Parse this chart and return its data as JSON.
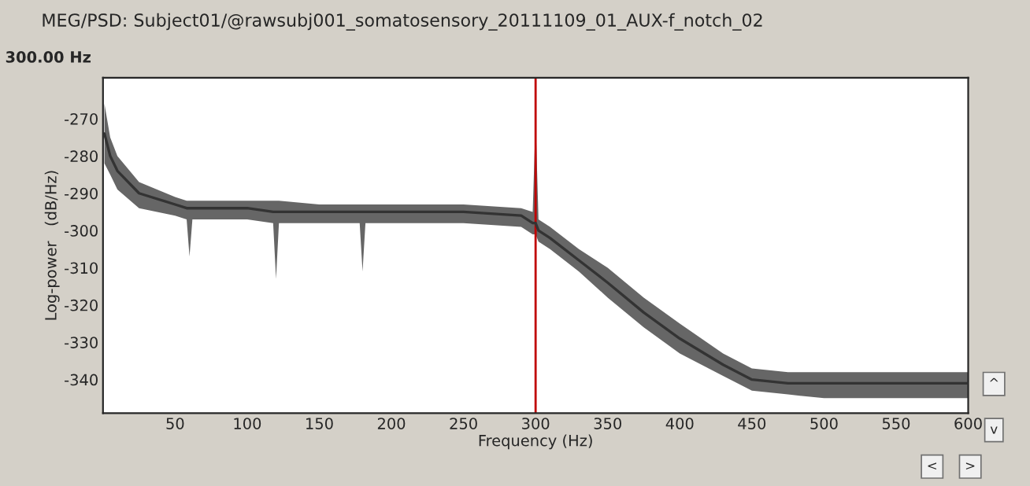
{
  "chart_data": {
    "type": "line",
    "title": "MEG/PSD: Subject01/@rawsubj001_somatosensory_20111109_01_AUX-f_notch_02",
    "xlabel": "Frequency (Hz)",
    "ylabel": "Log-power   (dB/Hz)",
    "annotations": [
      "300.00 Hz",
      "^",
      "v",
      "<",
      ">"
    ],
    "xlim": [
      0,
      600
    ],
    "ylim": [
      -349,
      -259
    ],
    "xticks": [
      50,
      100,
      150,
      200,
      250,
      300,
      350,
      400,
      450,
      500,
      550,
      600
    ],
    "yticks": [
      -270,
      -280,
      -290,
      -300,
      -310,
      -340,
      -320,
      -330
    ],
    "grid": false,
    "legend": false,
    "marker": "none",
    "line_style": "solid",
    "ref_lines": [
      {
        "axis": "x",
        "value": 300,
        "color": "#c00000"
      }
    ],
    "series": [
      {
        "color": "#333333",
        "x": [
          1,
          5,
          10,
          25,
          50,
          58,
          60,
          62,
          100,
          118,
          120,
          122,
          150,
          178,
          180,
          182,
          200,
          250,
          290,
          298,
          300,
          302,
          310,
          330,
          350,
          375,
          400,
          430,
          450,
          475,
          500,
          550,
          600
        ],
        "values": [
          -274,
          -280,
          -284,
          -290,
          -293,
          -294,
          -294,
          -294,
          -294,
          -295,
          -295,
          -295,
          -295,
          -295,
          -295,
          -295,
          -295,
          -295,
          -296,
          -298,
          -298,
          -300,
          -302,
          -308,
          -314,
          -322,
          -329,
          -336,
          -340,
          -341,
          -341,
          -341,
          -341
        ],
        "lower": [
          -282,
          -285,
          -289,
          -294,
          -296,
          -297,
          -307,
          -297,
          -297,
          -298,
          -313,
          -298,
          -298,
          -298,
          -311,
          -298,
          -298,
          -298,
          -299,
          -301,
          -301,
          -303,
          -305,
          -311,
          -318,
          -326,
          -333,
          -339,
          -343,
          -344,
          -345,
          -345,
          -345
        ],
        "upper": [
          -266,
          -275,
          -280,
          -287,
          -291,
          -292,
          -292,
          -292,
          -292,
          -292,
          -292,
          -292,
          -293,
          -293,
          -293,
          -293,
          -293,
          -293,
          -294,
          -295,
          -270,
          -297,
          -299,
          -305,
          -310,
          -318,
          -325,
          -333,
          -337,
          -338,
          -338,
          -338,
          -338
        ]
      }
    ]
  }
}
